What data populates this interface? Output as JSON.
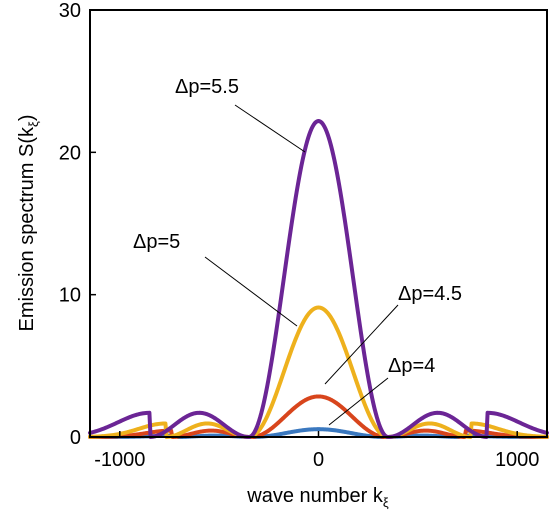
{
  "chart_data": {
    "type": "line",
    "xlabel": "wave number k",
    "xlabel_subscript": "ξ",
    "ylabel": "Emission spectrum S(k",
    "ylabel_subscript": "ξ",
    "ylabel_suffix": ")",
    "xlim": [
      -1150,
      1150
    ],
    "ylim": [
      0,
      30
    ],
    "x_ticks": [
      -1000,
      0,
      1000
    ],
    "x_tick_labels": [
      "-1000",
      "0",
      "1000"
    ],
    "y_ticks": [
      0,
      10,
      20,
      30
    ],
    "y_tick_labels": [
      "0",
      "10",
      "20",
      "30"
    ],
    "grid": false,
    "series": [
      {
        "name": "Δp=5.5",
        "label_text": "Δp=5.5",
        "color": "#6b2595",
        "peak": 22.2,
        "zero_crossing": 350,
        "side_lobe_x": 600,
        "side_lobe_y": 1.7,
        "z_order": 4
      },
      {
        "name": "Δp=5",
        "label_text": "Δp=5",
        "color": "#eeb11d",
        "peak": 9.1,
        "zero_crossing": 350,
        "side_lobe_x": 560,
        "side_lobe_y": 0.95,
        "z_order": 3
      },
      {
        "name": "Δp=4.5",
        "label_text": "Δp=4.5",
        "color": "#d8451c",
        "peak": 2.85,
        "zero_crossing": 340,
        "side_lobe_x": 540,
        "side_lobe_y": 0.45,
        "z_order": 2
      },
      {
        "name": "Δp=4",
        "label_text": "Δp=4",
        "color": "#3a78bf",
        "peak": 0.55,
        "zero_crossing": 330,
        "side_lobe_x": 520,
        "side_lobe_y": 0.1,
        "z_order": 1
      }
    ]
  }
}
